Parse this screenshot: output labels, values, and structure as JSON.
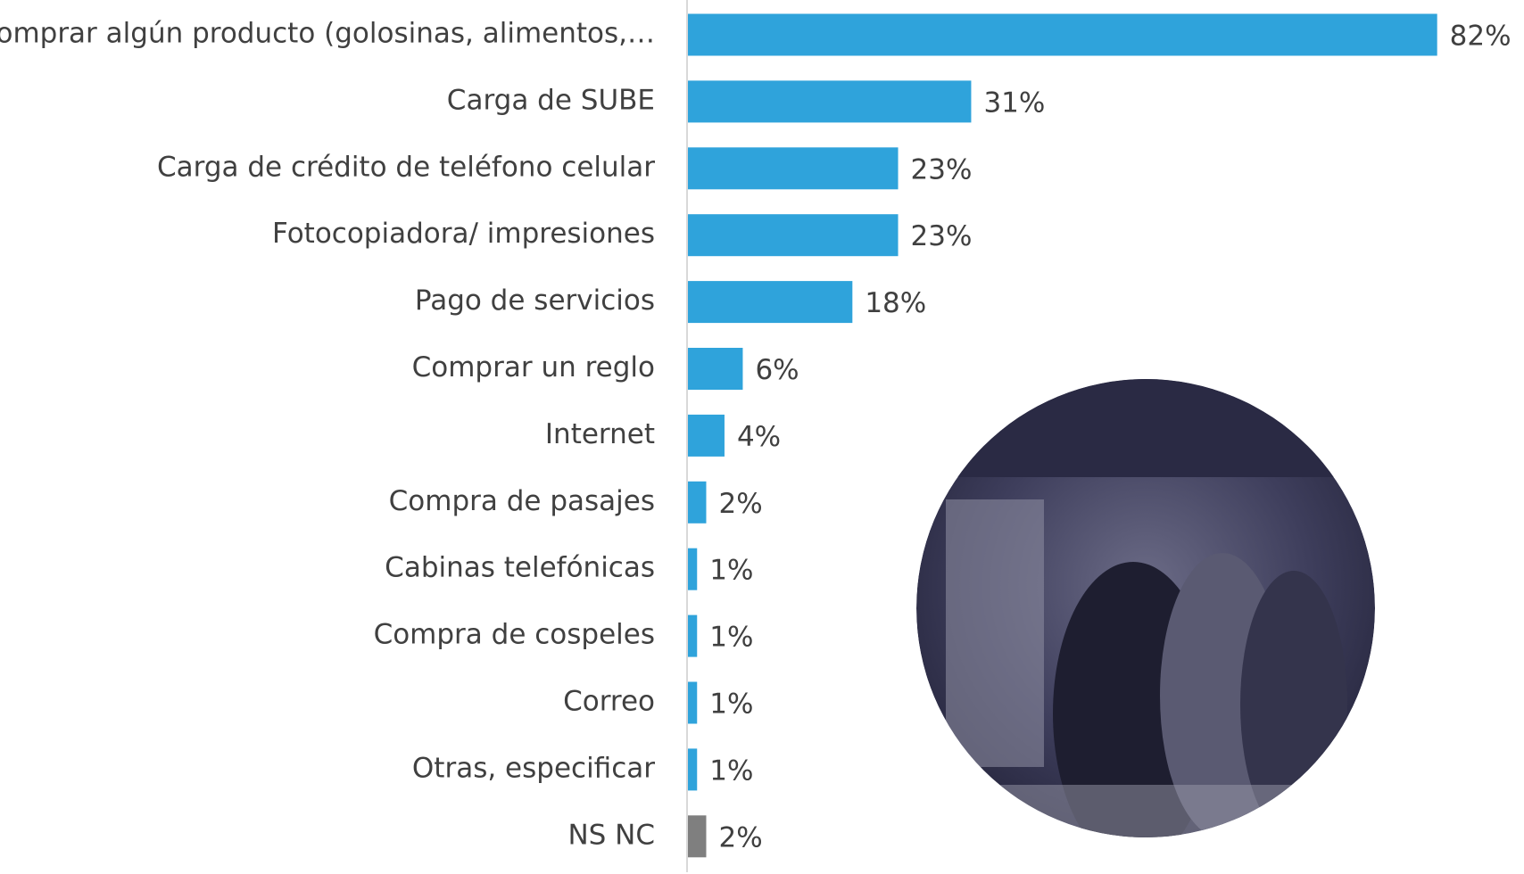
{
  "chart_data": {
    "type": "barh",
    "categories": [
      "Comprar algún producto (golosinas, alimentos,…",
      "Carga de SUBE",
      "Carga de crédito de teléfono celular",
      "Fotocopiadora/ impresiones",
      "Pago de servicios",
      "Comprar un reglo",
      "Internet",
      "Compra de pasajes",
      "Cabinas telefónicas",
      "Compra de cospeles",
      "Correo",
      "Otras, especificar",
      "NS NC"
    ],
    "values": [
      82,
      31,
      23,
      23,
      18,
      6,
      4,
      2,
      1,
      1,
      1,
      1,
      2
    ],
    "value_labels": [
      "82%",
      "31%",
      "23%",
      "23%",
      "18%",
      "6%",
      "4%",
      "2%",
      "1%",
      "1%",
      "1%",
      "1%",
      "2%"
    ],
    "colors": [
      "#2fa3db",
      "#2fa3db",
      "#2fa3db",
      "#2fa3db",
      "#2fa3db",
      "#2fa3db",
      "#2fa3db",
      "#2fa3db",
      "#2fa3db",
      "#2fa3db",
      "#2fa3db",
      "#2fa3db",
      "#7f7f7f"
    ]
  }
}
